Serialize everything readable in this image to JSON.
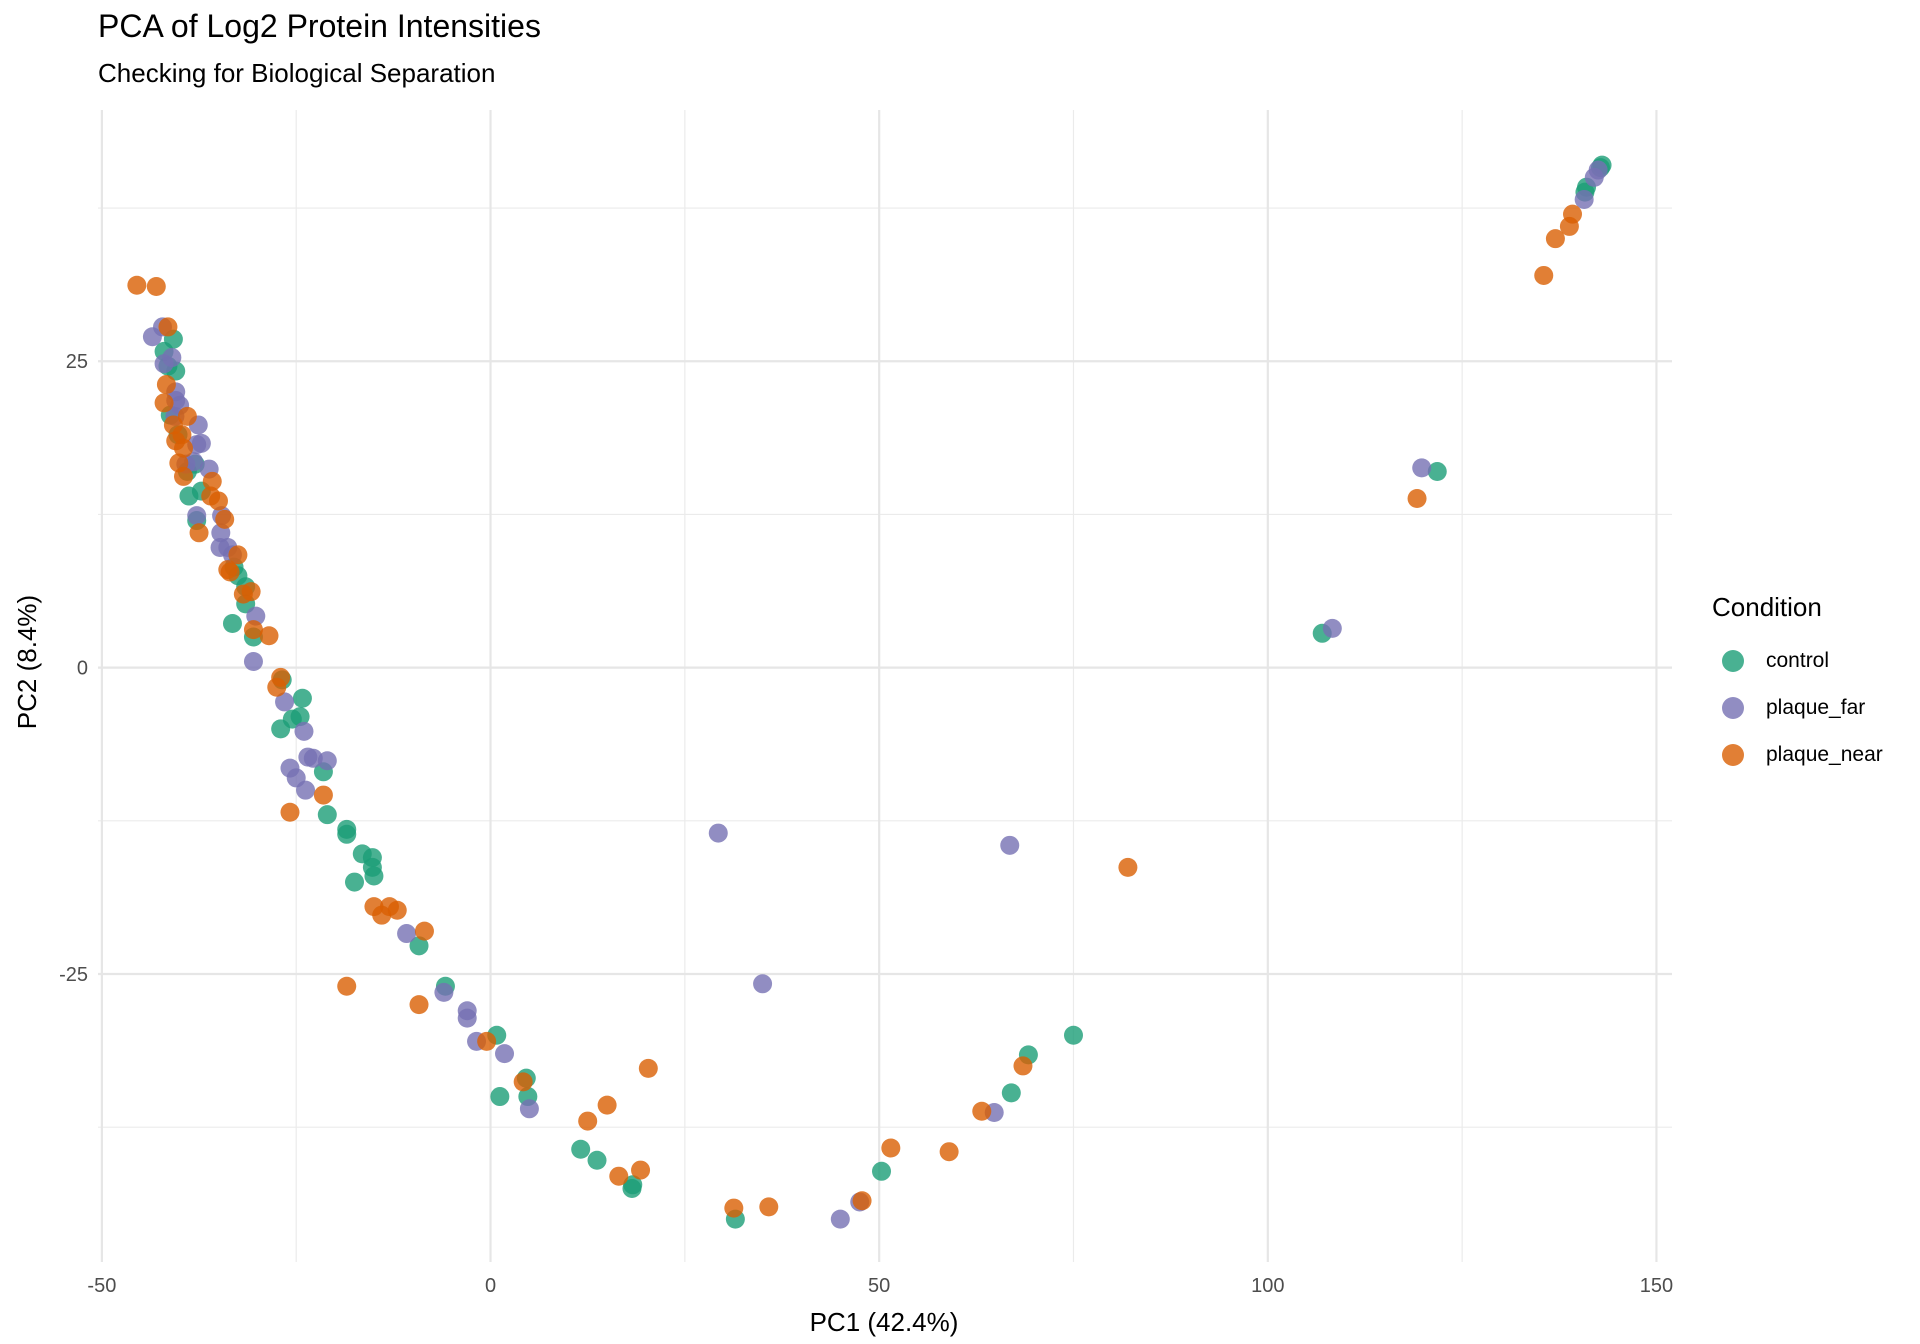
{
  "colors": {
    "control": "#1b9e77",
    "plaque_far": "#7570b3",
    "plaque_near": "#d95f02"
  },
  "chart_data": {
    "type": "scatter",
    "title": "PCA of Log2 Protein Intensities",
    "subtitle": "Checking for Biological Separation",
    "xlabel": "PC1 (42.4%)",
    "ylabel": "PC2 (8.4%)",
    "xlim": [
      -50.5,
      152
    ],
    "ylim": [
      -48.5,
      45.5
    ],
    "x_ticks": [
      -50,
      0,
      50,
      100,
      150
    ],
    "x_tick_labels": [
      "-50",
      "0",
      "50",
      "100",
      "150"
    ],
    "y_ticks": [
      25,
      0,
      -25
    ],
    "y_tick_labels": [
      "25",
      "0",
      "-25"
    ],
    "x_minor": [
      -25,
      25,
      75,
      125
    ],
    "y_minor": [
      37.5,
      12.5,
      -12.5,
      -37.5
    ],
    "grid": true,
    "legend_title": "Condition",
    "legend_position": "right",
    "series": [
      {
        "name": "control",
        "color": "#1b9e77",
        "points": [
          [
            -42,
            25.8
          ],
          [
            -40.8,
            26.8
          ],
          [
            -41.5,
            24.6
          ],
          [
            -40.5,
            24.2
          ],
          [
            -41.2,
            20.6
          ],
          [
            -40.2,
            19
          ],
          [
            -39,
            16
          ],
          [
            -38,
            16.6
          ],
          [
            -37.2,
            14.4
          ],
          [
            -38.8,
            14
          ],
          [
            -37.8,
            12
          ],
          [
            -33,
            8.2
          ],
          [
            -32.5,
            7.5
          ],
          [
            -31.5,
            6.6
          ],
          [
            -31.5,
            5.2
          ],
          [
            -33.2,
            3.6
          ],
          [
            -30.5,
            2.5
          ],
          [
            -26.8,
            -1
          ],
          [
            -24.2,
            -2.5
          ],
          [
            -27,
            -5
          ],
          [
            -25.5,
            -4.2
          ],
          [
            -24.5,
            -4
          ],
          [
            -21.5,
            -8.5
          ],
          [
            -21,
            -12
          ],
          [
            -18.5,
            -13.2
          ],
          [
            -18.5,
            -13.6
          ],
          [
            -16.5,
            -15.2
          ],
          [
            -15.2,
            -15.5
          ],
          [
            -15.2,
            -16.3
          ],
          [
            -15,
            -17
          ],
          [
            -17.5,
            -17.5
          ],
          [
            -9.2,
            -22.7
          ],
          [
            -5.8,
            -26
          ],
          [
            0.8,
            -30
          ],
          [
            1.2,
            -35
          ],
          [
            4.6,
            -33.5
          ],
          [
            4.8,
            -35
          ],
          [
            11.6,
            -39.3
          ],
          [
            13.7,
            -40.2
          ],
          [
            18.2,
            -42.5
          ],
          [
            18.3,
            -42.2
          ],
          [
            31.5,
            -45
          ],
          [
            50.3,
            -41.1
          ],
          [
            67,
            -34.7
          ],
          [
            69.2,
            -31.6
          ],
          [
            75,
            -30
          ],
          [
            107,
            2.8
          ],
          [
            121.8,
            16
          ],
          [
            140.8,
            38.8
          ],
          [
            141,
            39.2
          ],
          [
            142.8,
            40.8
          ],
          [
            143,
            41
          ]
        ]
      },
      {
        "name": "plaque_far",
        "color": "#7570b3",
        "points": [
          [
            -43.5,
            27
          ],
          [
            -42.2,
            27.8
          ],
          [
            -42,
            24.8
          ],
          [
            -41,
            25.3
          ],
          [
            -40.5,
            22.5
          ],
          [
            -40.5,
            21.8
          ],
          [
            -40,
            21.4
          ],
          [
            -40.6,
            20.5
          ],
          [
            -37.6,
            19.8
          ],
          [
            -37.2,
            18.3
          ],
          [
            -37.8,
            18.2
          ],
          [
            -39.2,
            16.6
          ],
          [
            -38.2,
            16.8
          ],
          [
            -36.2,
            16.2
          ],
          [
            -37.8,
            12.4
          ],
          [
            -34.6,
            12.4
          ],
          [
            -34.7,
            11
          ],
          [
            -34.8,
            9.8
          ],
          [
            -33.8,
            9.8
          ],
          [
            -33.2,
            9.2
          ],
          [
            -30.2,
            4.2
          ],
          [
            -30.5,
            0.5
          ],
          [
            -26.5,
            -2.8
          ],
          [
            -24,
            -5.2
          ],
          [
            -23.5,
            -7.3
          ],
          [
            -22.8,
            -7.4
          ],
          [
            -21,
            -7.6
          ],
          [
            -25.8,
            -8.2
          ],
          [
            -25,
            -9
          ],
          [
            -23.8,
            -10
          ],
          [
            -10.8,
            -21.7
          ],
          [
            -6,
            -26.5
          ],
          [
            -3,
            -28
          ],
          [
            -3,
            -28.6
          ],
          [
            -1.8,
            -30.5
          ],
          [
            1.8,
            -31.5
          ],
          [
            5,
            -36
          ],
          [
            29.3,
            -13.5
          ],
          [
            35,
            -25.8
          ],
          [
            45,
            -45
          ],
          [
            47.5,
            -43.6
          ],
          [
            64.8,
            -36.3
          ],
          [
            66.8,
            -14.5
          ],
          [
            108.3,
            3.2
          ],
          [
            119.8,
            16.3
          ],
          [
            140.7,
            38.2
          ],
          [
            142,
            40
          ],
          [
            142.5,
            40.6
          ]
        ]
      },
      {
        "name": "plaque_near",
        "color": "#d95f02",
        "points": [
          [
            -45.5,
            31.2
          ],
          [
            -43,
            31.1
          ],
          [
            -41.5,
            27.8
          ],
          [
            -41.7,
            23.1
          ],
          [
            -42,
            21.6
          ],
          [
            -40.5,
            18.5
          ],
          [
            -40.1,
            16.7
          ],
          [
            -40.8,
            19.8
          ],
          [
            -39.7,
            19
          ],
          [
            -39.5,
            17.9
          ],
          [
            -39,
            20.5
          ],
          [
            -39.5,
            15.6
          ],
          [
            -37.5,
            11
          ],
          [
            -35.8,
            15.2
          ],
          [
            -36,
            14
          ],
          [
            -35,
            13.6
          ],
          [
            -34.2,
            12.1
          ],
          [
            -32.5,
            9.2
          ],
          [
            -33.8,
            8
          ],
          [
            -33.5,
            7.8
          ],
          [
            -31.8,
            6
          ],
          [
            -30.8,
            6.2
          ],
          [
            -30.5,
            3.1
          ],
          [
            -28.5,
            2.6
          ],
          [
            -27,
            -0.8
          ],
          [
            -27.5,
            -1.6
          ],
          [
            -25.8,
            -11.8
          ],
          [
            -21.5,
            -10.4
          ],
          [
            -18.5,
            -26
          ],
          [
            -15,
            -19.5
          ],
          [
            -14,
            -20.2
          ],
          [
            -13,
            -19.5
          ],
          [
            -12,
            -19.8
          ],
          [
            -8.5,
            -21.5
          ],
          [
            -9.2,
            -27.5
          ],
          [
            -0.5,
            -30.5
          ],
          [
            4.2,
            -33.8
          ],
          [
            12.5,
            -37
          ],
          [
            15,
            -35.7
          ],
          [
            16.5,
            -41.5
          ],
          [
            19.3,
            -41
          ],
          [
            20.3,
            -32.7
          ],
          [
            31.3,
            -44.1
          ],
          [
            35.8,
            -44
          ],
          [
            47.8,
            -43.5
          ],
          [
            51.5,
            -39.2
          ],
          [
            59,
            -39.5
          ],
          [
            63.2,
            -36.2
          ],
          [
            68.5,
            -32.5
          ],
          [
            82,
            -16.3
          ],
          [
            119.2,
            13.8
          ],
          [
            135.5,
            32
          ],
          [
            137,
            35
          ],
          [
            138.8,
            36
          ],
          [
            139.2,
            37
          ]
        ]
      }
    ]
  }
}
